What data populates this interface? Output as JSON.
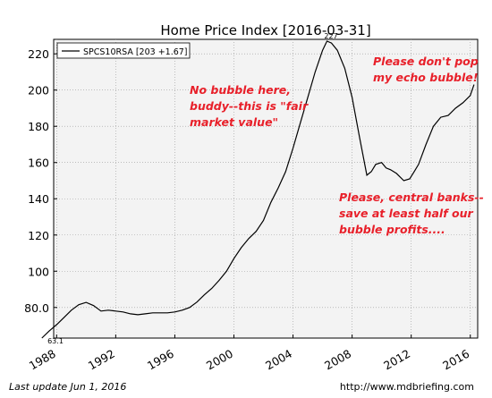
{
  "chart_data": {
    "type": "line",
    "title": "Home Price Index  [2016-03-31]",
    "xlabel": "",
    "ylabel": "",
    "xlim": [
      1987.8,
      2016.5
    ],
    "ylim": [
      63.1,
      228
    ],
    "grid": true,
    "legend": {
      "position": "top-left",
      "entries": [
        "SPCS10RSA [203 +1.67]"
      ]
    },
    "yticks": [
      "80.0",
      "100",
      "120",
      "140",
      "160",
      "180",
      "200",
      "220"
    ],
    "xticks": [
      "1988",
      "1992",
      "1996",
      "2000",
      "2004",
      "2008",
      "2012",
      "2016"
    ],
    "markers": {
      "max_label": "227",
      "min_label": "63.1"
    },
    "annotations": [
      {
        "lines": [
          "No bubble here,",
          "buddy--this is \"fair",
          "market value\""
        ]
      },
      {
        "lines": [
          "Please don't pop",
          "my echo bubble!"
        ]
      },
      {
        "lines": [
          "Please, central banks--",
          "save at least half our",
          "bubble profits...."
        ]
      }
    ],
    "series": [
      {
        "name": "SPCS10RSA [203 +1.67]",
        "color": "#000000",
        "x": [
          1987.0,
          1987.5,
          1988.0,
          1988.5,
          1989.0,
          1989.5,
          1990.0,
          1990.5,
          1991.0,
          1991.5,
          1992.0,
          1992.5,
          1993.0,
          1993.5,
          1994.0,
          1994.5,
          1995.0,
          1995.5,
          1996.0,
          1996.5,
          1997.0,
          1997.5,
          1998.0,
          1998.5,
          1999.0,
          1999.5,
          2000.0,
          2000.5,
          2001.0,
          2001.5,
          2002.0,
          2002.5,
          2003.0,
          2003.5,
          2004.0,
          2004.5,
          2005.0,
          2005.5,
          2006.0,
          2006.3,
          2006.6,
          2007.0,
          2007.5,
          2008.0,
          2008.5,
          2009.0,
          2009.3,
          2009.6,
          2010.0,
          2010.3,
          2010.6,
          2011.0,
          2011.5,
          2011.9,
          2012.2,
          2012.5,
          2013.0,
          2013.5,
          2014.0,
          2014.5,
          2015.0,
          2015.5,
          2016.0,
          2016.25
        ],
        "values": [
          63.1,
          67.0,
          70.5,
          74.5,
          78.5,
          81.5,
          82.8,
          81.0,
          78.0,
          78.5,
          78.0,
          77.5,
          76.5,
          76.0,
          76.5,
          77.0,
          77.0,
          77.0,
          77.5,
          78.5,
          80.0,
          83.0,
          87.0,
          90.5,
          95.0,
          100.0,
          107.0,
          113.0,
          118.0,
          122.0,
          128.0,
          138.0,
          146.0,
          155.0,
          168.0,
          182.0,
          196.0,
          210.0,
          222.0,
          227.0,
          226.0,
          222.0,
          212.0,
          196.0,
          174.0,
          153.0,
          155.0,
          159.0,
          160.0,
          157.0,
          156.0,
          154.0,
          150.0,
          151.0,
          155.0,
          159.0,
          170.0,
          180.0,
          185.0,
          186.0,
          190.0,
          193.0,
          197.0,
          203.0
        ]
      }
    ]
  },
  "footer": {
    "left": "Last update Jun  1, 2016",
    "right": "http://www.mdbriefing.com"
  }
}
